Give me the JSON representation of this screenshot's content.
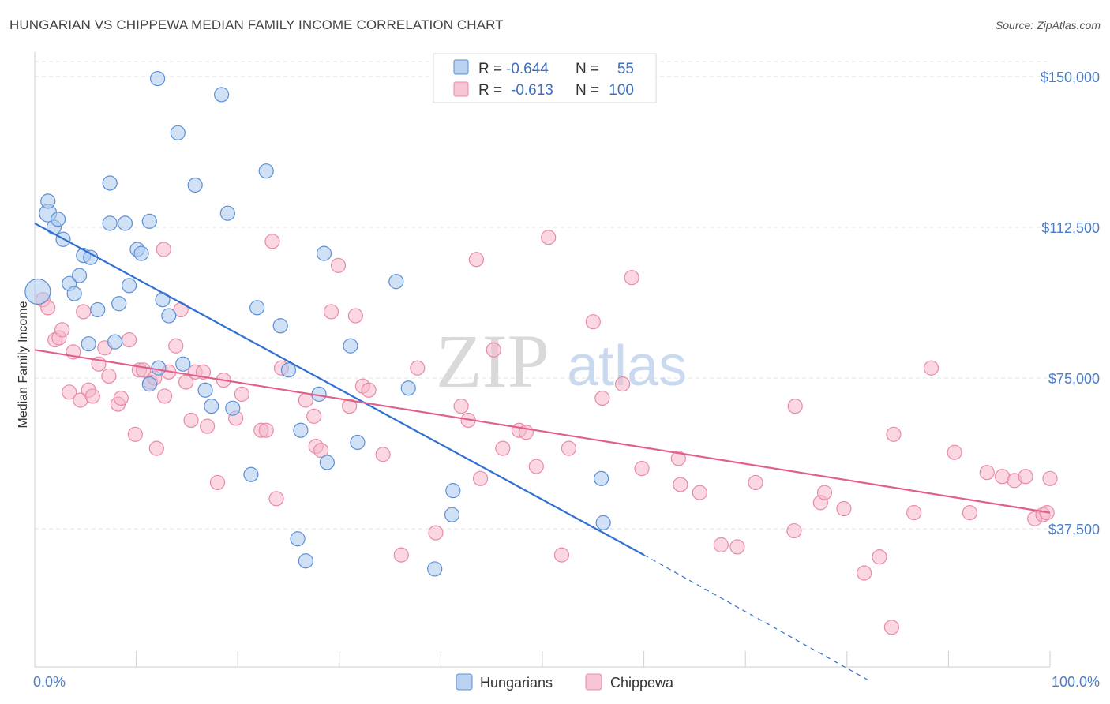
{
  "title": "HUNGARIAN VS CHIPPEWA MEDIAN FAMILY INCOME CORRELATION CHART",
  "source": "Source: ZipAtlas.com",
  "watermark": {
    "zip": "ZIP",
    "atlas": "atlas"
  },
  "legend_box": {
    "rows": [
      {
        "r_label": "R =",
        "r_value": "-0.644",
        "n_label": "N =",
        "n_value": "55",
        "color": "#a9c8ef"
      },
      {
        "r_label": "R =",
        "r_value": "-0.613",
        "n_label": "N =",
        "n_value": "100",
        "color": "#f6b6c9"
      }
    ]
  },
  "bottom_legend": [
    {
      "label": "Hungarians",
      "color": "#a9c8ef"
    },
    {
      "label": "Chippewa",
      "color": "#f6b6c9"
    }
  ],
  "chart_data": {
    "type": "scatter",
    "ylabel": "Median Family Income",
    "xlabel": "",
    "x_tick_labels": [
      "0.0%",
      "100.0%"
    ],
    "y_tick_labels": [
      "$150,000",
      "$112,500",
      "$75,000",
      "$37,500"
    ],
    "y_ticks": [
      150000,
      112500,
      75000,
      37500
    ],
    "xlim": [
      0,
      100
    ],
    "ylim": [
      0,
      155000
    ],
    "grid": true,
    "legend_placement": "top-center",
    "series": [
      {
        "name": "Hungarians",
        "color": "#a9c8ef",
        "stroke": "#5b8fd6",
        "trend_color": "#2f6fd0",
        "trend": {
          "x0": 0,
          "y0": 113500,
          "x1": 60,
          "y1": 31000,
          "dash_x1": 82,
          "dash_y1": 0
        },
        "points": [
          [
            0.3,
            96500,
            16
          ],
          [
            1.3,
            116000,
            11
          ],
          [
            1.3,
            119000,
            9
          ],
          [
            1.9,
            112500,
            9
          ],
          [
            2.3,
            114500,
            9
          ],
          [
            2.8,
            109500,
            9
          ],
          [
            3.4,
            98500,
            9
          ],
          [
            3.9,
            96000,
            9
          ],
          [
            4.4,
            100500,
            9
          ],
          [
            4.8,
            105500,
            9
          ],
          [
            5.5,
            105000,
            9
          ],
          [
            6.2,
            92000,
            9
          ],
          [
            5.3,
            83500,
            9
          ],
          [
            7.4,
            113500,
            9
          ],
          [
            8.3,
            93500,
            9
          ],
          [
            7.9,
            84000,
            9
          ],
          [
            8.9,
            113500,
            9
          ],
          [
            9.3,
            98000,
            9
          ],
          [
            10.1,
            107000,
            9
          ],
          [
            10.5,
            106000,
            9
          ],
          [
            11.3,
            114000,
            9
          ],
          [
            12.6,
            94500,
            9
          ],
          [
            12.2,
            77500,
            9
          ],
          [
            11.3,
            73500,
            9
          ],
          [
            13.2,
            90500,
            9
          ],
          [
            14.1,
            136000,
            9
          ],
          [
            14.6,
            78500,
            9
          ],
          [
            15.8,
            123000,
            9
          ],
          [
            16.8,
            72000,
            9
          ],
          [
            17.4,
            68000,
            9
          ],
          [
            18.4,
            145500,
            9
          ],
          [
            19.0,
            116000,
            9
          ],
          [
            19.5,
            67500,
            9
          ],
          [
            21.3,
            51000,
            9
          ],
          [
            21.9,
            92500,
            9
          ],
          [
            22.8,
            126500,
            9
          ],
          [
            24.2,
            88000,
            9
          ],
          [
            25.0,
            77000,
            9
          ],
          [
            25.9,
            35000,
            9
          ],
          [
            26.2,
            62000,
            9
          ],
          [
            26.7,
            29500,
            9
          ],
          [
            28.5,
            106000,
            9
          ],
          [
            28.0,
            71000,
            9
          ],
          [
            28.8,
            54000,
            9
          ],
          [
            31.1,
            83000,
            9
          ],
          [
            31.8,
            59000,
            9
          ],
          [
            35.6,
            99000,
            9
          ],
          [
            36.8,
            72500,
            9
          ],
          [
            39.4,
            27500,
            9
          ],
          [
            41.1,
            41000,
            9
          ],
          [
            41.2,
            47000,
            9
          ],
          [
            12.1,
            149500,
            9
          ],
          [
            7.4,
            123500,
            9
          ],
          [
            55.8,
            50000,
            9
          ],
          [
            56.0,
            39000,
            9
          ]
        ]
      },
      {
        "name": "Chippewa",
        "color": "#f6b6c9",
        "stroke": "#e98aa8",
        "trend_color": "#e0608c",
        "trend": {
          "x0": 0,
          "y0": 82000,
          "x1": 100,
          "y1": 41500
        },
        "points": [
          [
            0.8,
            94500,
            9
          ],
          [
            1.3,
            92500,
            9
          ],
          [
            2.0,
            84500,
            9
          ],
          [
            2.4,
            85000,
            9
          ],
          [
            2.7,
            87000,
            9
          ],
          [
            3.4,
            71500,
            9
          ],
          [
            3.8,
            81500,
            9
          ],
          [
            4.5,
            69500,
            9
          ],
          [
            4.8,
            91500,
            9
          ],
          [
            5.3,
            72000,
            9
          ],
          [
            5.7,
            70500,
            9
          ],
          [
            6.3,
            78500,
            9
          ],
          [
            6.9,
            82500,
            9
          ],
          [
            7.3,
            75500,
            9
          ],
          [
            8.2,
            68500,
            9
          ],
          [
            8.5,
            70000,
            9
          ],
          [
            9.3,
            84500,
            9
          ],
          [
            9.9,
            61000,
            9
          ],
          [
            10.3,
            77000,
            9
          ],
          [
            10.7,
            77000,
            9
          ],
          [
            11.4,
            74000,
            9
          ],
          [
            11.8,
            75000,
            9
          ],
          [
            12.0,
            57500,
            9
          ],
          [
            12.7,
            107000,
            9
          ],
          [
            12.8,
            70500,
            9
          ],
          [
            13.2,
            76500,
            9
          ],
          [
            13.9,
            83000,
            9
          ],
          [
            14.4,
            92000,
            9
          ],
          [
            14.9,
            74000,
            9
          ],
          [
            15.4,
            64500,
            9
          ],
          [
            15.8,
            76500,
            9
          ],
          [
            16.6,
            76500,
            9
          ],
          [
            17.0,
            63000,
            9
          ],
          [
            18.0,
            49000,
            9
          ],
          [
            18.6,
            74500,
            9
          ],
          [
            19.8,
            65000,
            9
          ],
          [
            20.4,
            71000,
            9
          ],
          [
            22.3,
            62000,
            9
          ],
          [
            22.8,
            62000,
            9
          ],
          [
            23.4,
            109000,
            9
          ],
          [
            23.8,
            45000,
            9
          ],
          [
            24.3,
            77500,
            9
          ],
          [
            26.7,
            69500,
            9
          ],
          [
            27.5,
            65500,
            9
          ],
          [
            27.7,
            58000,
            9
          ],
          [
            28.2,
            57000,
            9
          ],
          [
            29.2,
            91500,
            9
          ],
          [
            29.9,
            103000,
            9
          ],
          [
            31.0,
            68000,
            9
          ],
          [
            31.6,
            90500,
            9
          ],
          [
            32.3,
            73000,
            9
          ],
          [
            32.9,
            72000,
            9
          ],
          [
            34.3,
            56000,
            9
          ],
          [
            36.1,
            31000,
            9
          ],
          [
            37.7,
            77500,
            9
          ],
          [
            39.5,
            36500,
            9
          ],
          [
            42.0,
            68000,
            9
          ],
          [
            43.5,
            104500,
            9
          ],
          [
            42.7,
            64500,
            9
          ],
          [
            43.9,
            50000,
            9
          ],
          [
            45.2,
            82000,
            9
          ],
          [
            46.1,
            57500,
            9
          ],
          [
            47.7,
            62000,
            9
          ],
          [
            48.4,
            61500,
            9
          ],
          [
            49.4,
            53000,
            9
          ],
          [
            50.6,
            110000,
            9
          ],
          [
            51.9,
            31000,
            9
          ],
          [
            52.6,
            57500,
            9
          ],
          [
            55.0,
            89000,
            9
          ],
          [
            55.9,
            70000,
            9
          ],
          [
            57.9,
            73500,
            9
          ],
          [
            58.8,
            100000,
            9
          ],
          [
            59.8,
            52500,
            9
          ],
          [
            63.4,
            55000,
            9
          ],
          [
            63.6,
            48500,
            9
          ],
          [
            65.5,
            46500,
            9
          ],
          [
            67.6,
            33500,
            9
          ],
          [
            69.2,
            33000,
            9
          ],
          [
            71.0,
            49000,
            9
          ],
          [
            74.8,
            37000,
            9
          ],
          [
            74.9,
            68000,
            9
          ],
          [
            77.4,
            44000,
            9
          ],
          [
            77.8,
            46500,
            9
          ],
          [
            79.7,
            42500,
            9
          ],
          [
            81.7,
            26500,
            9
          ],
          [
            83.2,
            30500,
            9
          ],
          [
            84.4,
            13000,
            9
          ],
          [
            84.6,
            61000,
            9
          ],
          [
            86.6,
            41500,
            9
          ],
          [
            88.3,
            77500,
            9
          ],
          [
            90.6,
            56500,
            9
          ],
          [
            92.1,
            41500,
            9
          ],
          [
            93.8,
            51500,
            9
          ],
          [
            95.3,
            50500,
            9
          ],
          [
            96.5,
            49500,
            9
          ],
          [
            98.5,
            40000,
            9
          ],
          [
            99.3,
            41000,
            9
          ],
          [
            99.7,
            41500,
            9
          ],
          [
            100.0,
            50000,
            9
          ],
          [
            97.6,
            50500,
            9
          ]
        ]
      }
    ]
  }
}
